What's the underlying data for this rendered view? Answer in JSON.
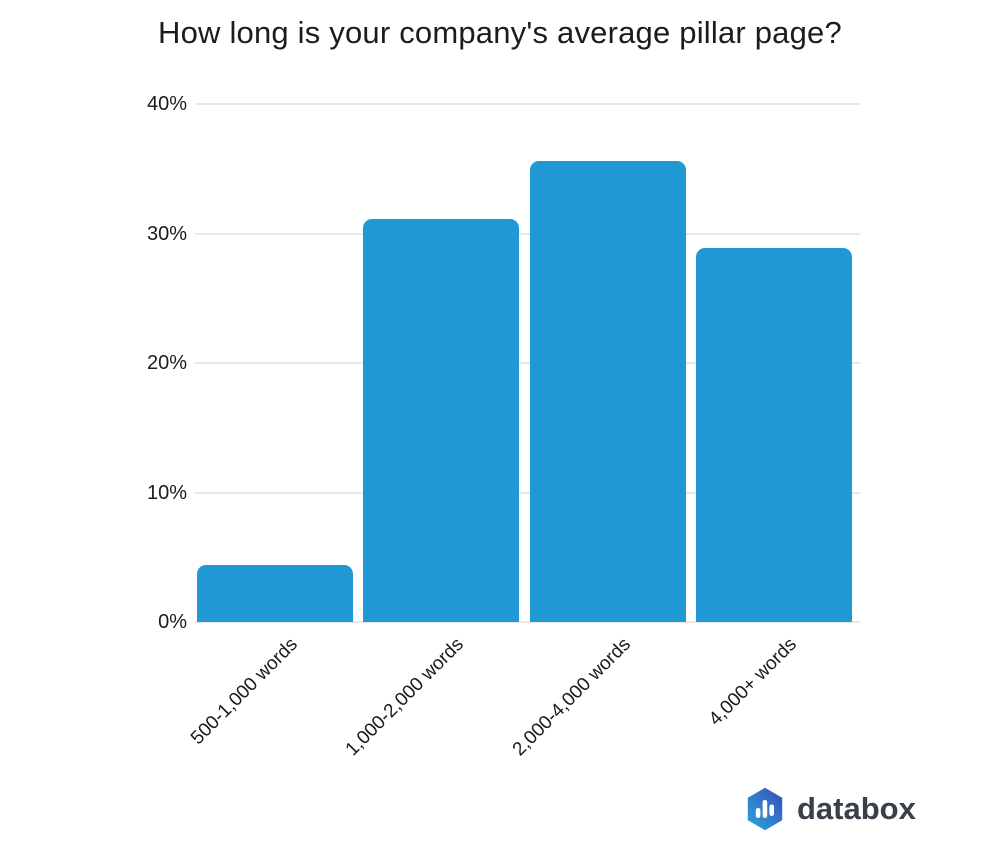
{
  "chart_data": {
    "type": "bar",
    "title": "How long is your company's average pillar page?",
    "categories": [
      "500-1,000 words",
      "1,000-2,000 words",
      "2,000-4,000 words",
      "4,000+ words"
    ],
    "values": [
      4.4,
      31.1,
      35.6,
      28.9
    ],
    "xlabel": "",
    "ylabel": "",
    "ylim": [
      0,
      40
    ],
    "yticks": [
      0,
      10,
      20,
      30,
      40
    ],
    "ytick_labels": [
      "0%",
      "10%",
      "20%",
      "30%",
      "40%"
    ],
    "grid": true,
    "legend": "none",
    "bar_color": "#2098d4",
    "gridline_color": "#e8e8e8",
    "label_color": "#1b1b1b"
  },
  "footer": {
    "brand": "databox"
  },
  "logo": {
    "icon": "databox-hexagon-bars-icon",
    "gradient_start": "#2aa7e0",
    "gradient_end": "#3c4cb4",
    "bars_color": "#ffffff",
    "text_color": "#3a404a"
  }
}
